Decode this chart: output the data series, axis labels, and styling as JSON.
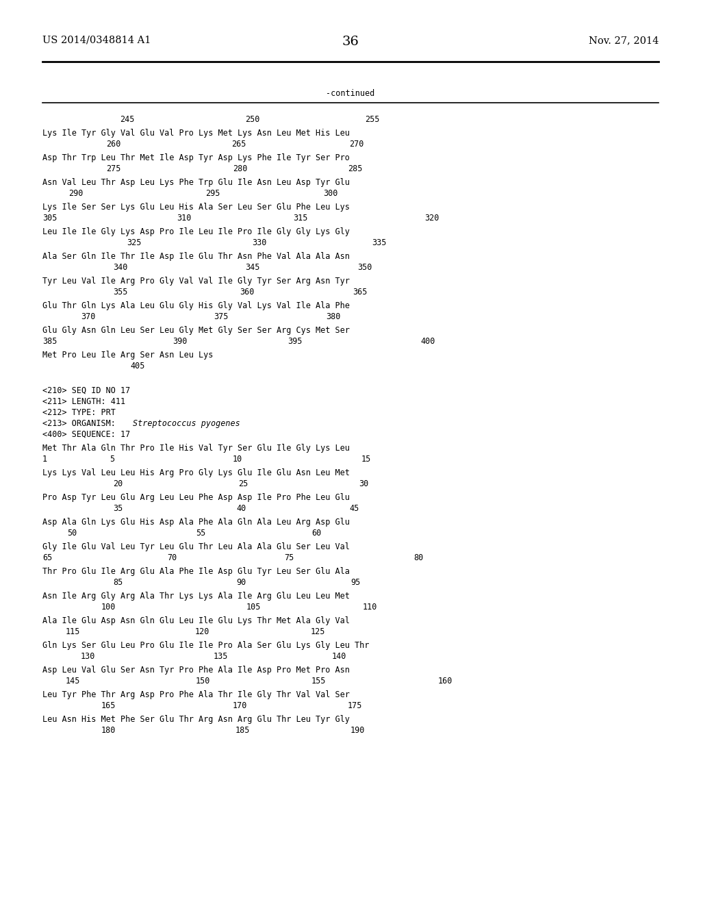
{
  "header_left": "US 2014/0348814 A1",
  "header_right": "Nov. 27, 2014",
  "page_number": "36",
  "continued_label": "-continued",
  "bg": "#ffffff",
  "fg": "#000000",
  "font_size": 8.5,
  "header_font_size": 10.5,
  "page_num_font_size": 14
}
